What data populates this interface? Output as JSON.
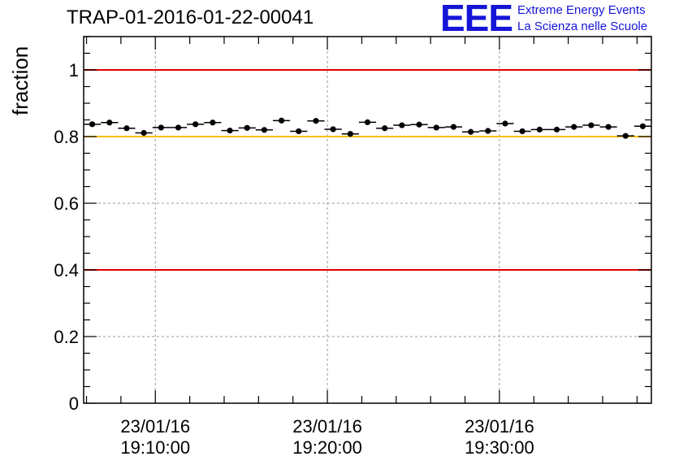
{
  "title": "TRAP-01-2016-01-22-00041",
  "logo": {
    "mark": "EEE",
    "line1": "Extreme Energy Events",
    "line2": "La Scienza nelle Scuole",
    "color": "#1515d8"
  },
  "chart_data": {
    "type": "scatter",
    "title": "TRAP-01-2016-01-22-00041",
    "ylabel": "fraction",
    "xlabel": "",
    "ylim": [
      0,
      1.1
    ],
    "xlim": [
      "2016-01-23 19:05:50",
      "2016-01-23 19:38:50"
    ],
    "grid": true,
    "ytick_labels": [
      "0",
      "0.2",
      "0.4",
      "0.6",
      "0.8",
      "1"
    ],
    "yticks": [
      0,
      0.2,
      0.4,
      0.6,
      0.8,
      1.0
    ],
    "xtick_labels": [
      {
        "x": "2016-01-23 19:10:00",
        "date": "23/01/16",
        "time": "19:10:00"
      },
      {
        "x": "2016-01-23 19:20:00",
        "date": "23/01/16",
        "time": "19:20:00"
      },
      {
        "x": "2016-01-23 19:30:00",
        "date": "23/01/16",
        "time": "19:30:00"
      }
    ],
    "reference_lines": [
      {
        "y": 1.0,
        "color": "#e00000"
      },
      {
        "y": 0.8,
        "color": "#f5c000"
      },
      {
        "y": 0.4,
        "color": "#e00000"
      }
    ],
    "series": [
      {
        "marker_color": "#000000",
        "x": [
          "2016-01-23 19:06:20",
          "2016-01-23 19:07:20",
          "2016-01-23 19:08:20",
          "2016-01-23 19:09:20",
          "2016-01-23 19:10:20",
          "2016-01-23 19:11:20",
          "2016-01-23 19:12:20",
          "2016-01-23 19:13:20",
          "2016-01-23 19:14:20",
          "2016-01-23 19:15:20",
          "2016-01-23 19:16:20",
          "2016-01-23 19:17:20",
          "2016-01-23 19:18:20",
          "2016-01-23 19:19:20",
          "2016-01-23 19:20:20",
          "2016-01-23 19:21:20",
          "2016-01-23 19:22:20",
          "2016-01-23 19:23:20",
          "2016-01-23 19:24:20",
          "2016-01-23 19:25:20",
          "2016-01-23 19:26:20",
          "2016-01-23 19:27:20",
          "2016-01-23 19:28:20",
          "2016-01-23 19:29:20",
          "2016-01-23 19:30:20",
          "2016-01-23 19:31:20",
          "2016-01-23 19:32:20",
          "2016-01-23 19:33:20",
          "2016-01-23 19:34:20",
          "2016-01-23 19:35:20",
          "2016-01-23 19:36:20",
          "2016-01-23 19:37:20",
          "2016-01-23 19:38:20"
        ],
        "y": [
          0.837,
          0.842,
          0.825,
          0.811,
          0.827,
          0.827,
          0.837,
          0.842,
          0.818,
          0.826,
          0.82,
          0.848,
          0.816,
          0.847,
          0.822,
          0.808,
          0.843,
          0.825,
          0.834,
          0.836,
          0.827,
          0.829,
          0.814,
          0.817,
          0.839,
          0.816,
          0.821,
          0.821,
          0.829,
          0.834,
          0.829,
          0.802,
          0.831
        ],
        "yerr": 0.005
      }
    ]
  }
}
